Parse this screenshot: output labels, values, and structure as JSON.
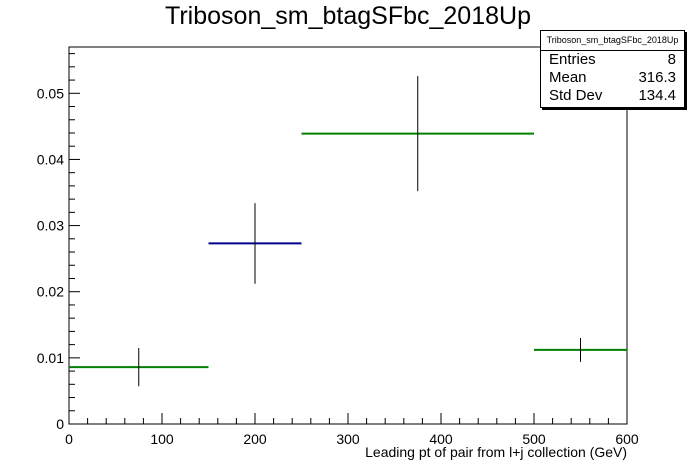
{
  "title": "Triboson_sm_btagSFbc_2018Up",
  "stats": {
    "name": "Triboson_sm_btagSFbc_2018Up",
    "rows": [
      {
        "label": "Entries",
        "value": "8"
      },
      {
        "label": "Mean",
        "value": "316.3"
      },
      {
        "label": "Std Dev",
        "value": "134.4"
      }
    ]
  },
  "chart_data": {
    "type": "bar",
    "title": "Triboson_sm_btagSFbc_2018Up",
    "xlabel": "Leading pt of pair from l+j collection (GeV)",
    "ylabel": "",
    "xlim": [
      0,
      600
    ],
    "ylim": [
      0,
      0.057
    ],
    "x_ticks": [
      0,
      100,
      200,
      300,
      400,
      500,
      600
    ],
    "y_ticks": [
      0,
      0.01,
      0.02,
      0.03,
      0.04,
      0.05
    ],
    "y_tick_labels": [
      "0",
      "0.01",
      "0.02",
      "0.03",
      "0.04",
      "0.05"
    ],
    "bins": [
      {
        "x_low": 0,
        "x_high": 150,
        "value": 0.0086,
        "err": 0.0029,
        "color": "#008000"
      },
      {
        "x_low": 150,
        "x_high": 250,
        "value": 0.0273,
        "err": 0.0061,
        "color": "#00008b"
      },
      {
        "x_low": 250,
        "x_high": 500,
        "value": 0.0439,
        "err": 0.0087,
        "color": "#008000"
      },
      {
        "x_low": 500,
        "x_high": 600,
        "value": 0.0112,
        "err": 0.0018,
        "color": "#008000"
      }
    ]
  }
}
